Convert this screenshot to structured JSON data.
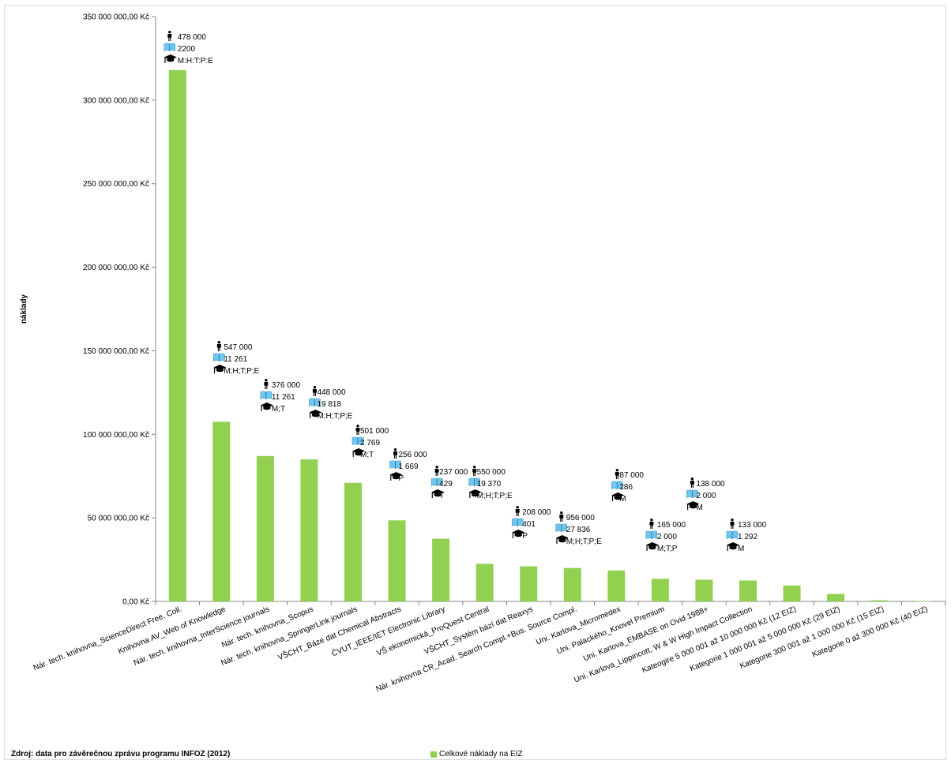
{
  "chart_data": {
    "type": "bar",
    "ylabel": "náklady",
    "ylim": [
      0,
      350000000
    ],
    "ytick_labels": [
      "0,00 Kč",
      "50 000 000,00 Kč",
      "100 000 000,00 Kč",
      "150 000 000,00 Kč",
      "200 000 000,00 Kč",
      "250 000 000,00 Kč",
      "300 000 000,00 Kč",
      "350 000 000,00 Kč"
    ],
    "grid": false,
    "legend_position": "bottom",
    "series": [
      {
        "name": "Celkové náklady na EIZ",
        "color": "#92d050",
        "values": [
          318000000,
          107500000,
          87000000,
          85000000,
          71000000,
          48500000,
          37500000,
          22500000,
          21000000,
          20000000,
          18500000,
          13500000,
          13000000,
          12500000,
          9500000,
          4500000,
          700000,
          200000
        ]
      }
    ],
    "categories": [
      "Nár. tech. knihovna_ScienceDirect Free. Coll.",
      "Knihovna AV_Web of Knowledge",
      "Nár. tech. knihovna_InterScience journals",
      "Nár. tech. knihovna_Scopus",
      "Nár. tech. knihovna_SpringerLink journals",
      "VŠCHT_Báze dat Chemical Abstracts",
      "ČVUT_IEEE/IET Electronic Library",
      "VŠ ekonomická_ProQuest Central",
      "VŠCHT_Systém bází dat Reaxys",
      "Nár. knihovna ČR_Acad. Search Compl.+Bus. Source Compl.",
      "Uni. Karlova_Micromedex",
      "Uni. Palackého_Knovel Premium",
      "Uni. Karlova_EMBASE on Ovid 1988+",
      "Uni. Karlova_Lippincott, W & W High Impact Collection",
      "Kateogire 5 000 001 až 10 000 000 Kč (12 EIZ)",
      "Kategorie 1 000 001 až 5 000 000 Kč (29 EIZ)",
      "Kategorie 300 001 až 1 000 000 Kč (15 EIZ)",
      "Kategorie 0 až 300 000 Kč (40 EIZ)"
    ],
    "annotations": [
      {
        "users": "478 000",
        "titles": "2200",
        "fields": "M:H:T:P:E"
      },
      {
        "users": "547 000",
        "titles": "11 261",
        "fields": "M;H;T;P;E"
      },
      {
        "users": "376 000",
        "titles": "11 261",
        "fields": "M;T"
      },
      {
        "users": "448 000",
        "titles": "19 818",
        "fields": "M;H;T;P;E"
      },
      {
        "users": "501 000",
        "titles": "2 769",
        "fields": "M;T"
      },
      {
        "users": "256 000",
        "titles": "1 669",
        "fields": "P"
      },
      {
        "users": "237 000",
        "titles": "429",
        "fields": "T"
      },
      {
        "users": "550 000",
        "titles": "19 370",
        "fields": "M;H;T;P;E"
      },
      {
        "users": "208 000",
        "titles": "401",
        "fields": "P"
      },
      {
        "users": "956 000",
        "titles": "27 836",
        "fields": "M;H;T;P;E"
      },
      {
        "users": "87 000",
        "titles": "286",
        "fields": "M"
      },
      {
        "users": "165 000",
        "titles": "2 000",
        "fields": "M;T;P"
      },
      {
        "users": "138 000",
        "titles": "2 000",
        "fields": "M"
      },
      {
        "users": "133 000",
        "titles": "1 292",
        "fields": "M"
      }
    ],
    "annotation_icons": [
      "person-icon",
      "book-icon",
      "graduation-cap-icon"
    ]
  },
  "source_note": "Zdroj: data pro závěrečnou zprávu programu INFOZ (2012)"
}
